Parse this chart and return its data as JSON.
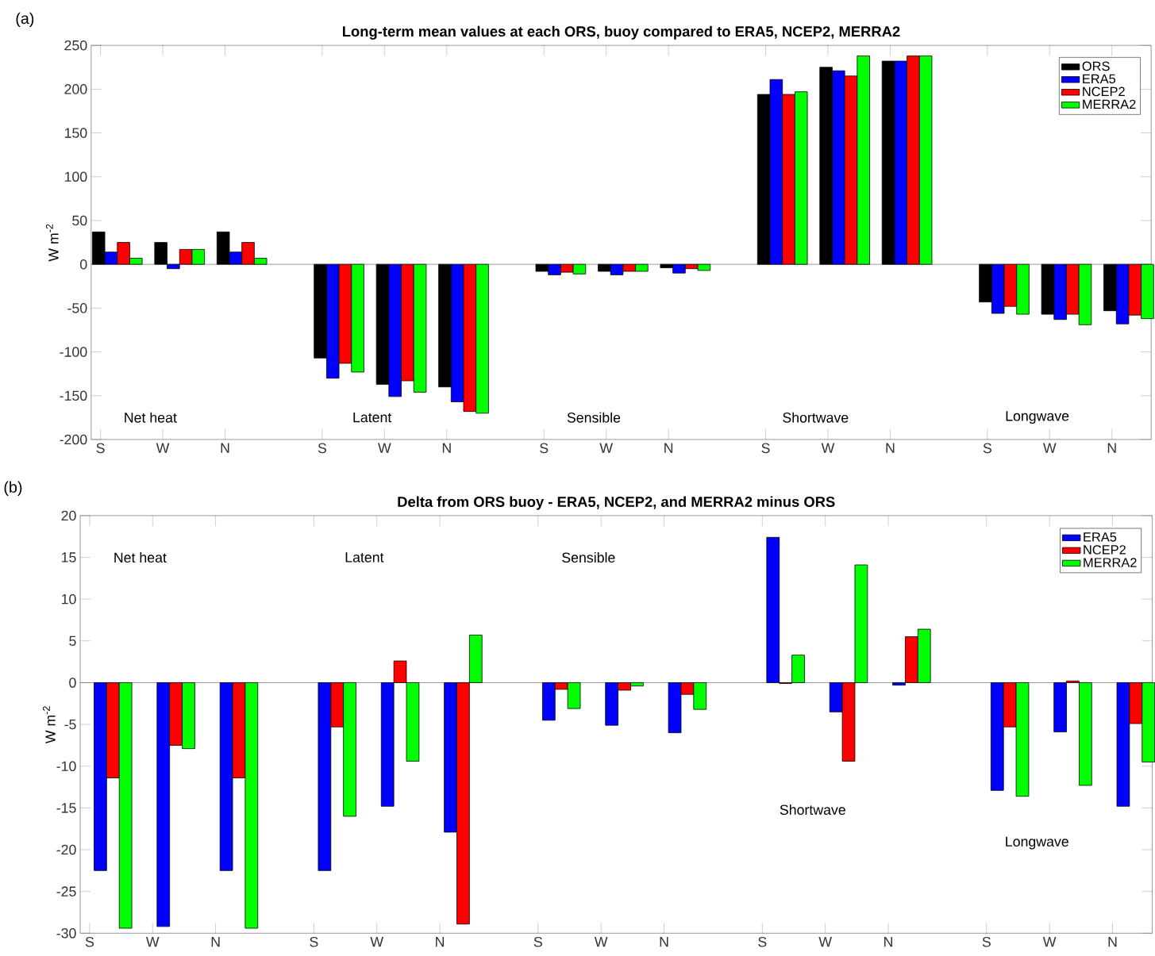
{
  "chart_data": [
    {
      "type": "bar",
      "title": "Long-term mean values at each ORS, buoy compared to ERA5, NCEP2, MERRA2",
      "ylabel": "W m$^{-2}$",
      "categories": [
        "S",
        "W",
        "N",
        "S",
        "W",
        "N",
        "S",
        "W",
        "N",
        "S",
        "W",
        "N",
        "S",
        "W",
        "N"
      ],
      "series": [
        {
          "name": "ORS",
          "color": "#000000",
          "values": [
            37,
            25,
            37,
            -107,
            -137,
            -140,
            -8,
            -8,
            -4,
            194,
            225,
            232,
            -43,
            -57,
            -53
          ]
        },
        {
          "name": "ERA5",
          "color": "#0000ff",
          "values": [
            14,
            -5,
            14,
            -130,
            -151,
            -157,
            -12,
            -12,
            -10,
            211,
            221,
            232,
            -56,
            -63,
            -68
          ]
        },
        {
          "name": "NCEP2",
          "color": "#ff0000",
          "values": [
            25,
            17,
            25,
            -113,
            -133,
            -168,
            -9,
            -8,
            -5,
            194,
            215,
            238,
            -48,
            -57,
            -58
          ]
        },
        {
          "name": "MERRA2",
          "color": "#00ff00",
          "values": [
            7,
            17,
            7,
            -123,
            -146,
            -170,
            -11,
            -8,
            -7,
            197,
            238,
            238,
            -57,
            -69,
            -62
          ]
        }
      ],
      "ylim": [
        -200,
        250
      ],
      "yticks": [
        -200,
        -150,
        -100,
        -50,
        0,
        50,
        100,
        150,
        200,
        250
      ],
      "legend": "top right",
      "annotations": [
        "(a)",
        "Net heat",
        "Latent",
        "Sensible",
        "Shortwave",
        "Longwave"
      ]
    },
    {
      "type": "bar",
      "title": "Delta from ORS buoy -  ERA5, NCEP2, and MERRA2 minus ORS",
      "ylabel": "W m$^{-2}$",
      "categories": [
        "S",
        "W",
        "N",
        "S",
        "W",
        "N",
        "S",
        "W",
        "N",
        "S",
        "W",
        "N",
        "S",
        "W",
        "N"
      ],
      "series": [
        {
          "name": "ERA5",
          "color": "#0000ff",
          "values": [
            -22.5,
            -29.2,
            -22.5,
            -22.5,
            -14.8,
            -17.9,
            -4.5,
            -5.1,
            -6.0,
            17.4,
            -3.5,
            -0.3,
            -12.9,
            -5.9,
            -14.8
          ]
        },
        {
          "name": "NCEP2",
          "color": "#ff0000",
          "values": [
            -11.4,
            -7.5,
            -11.4,
            -5.3,
            2.6,
            -28.9,
            -0.8,
            -0.9,
            -1.4,
            -0.1,
            -9.4,
            5.5,
            -5.3,
            0.2,
            -4.9
          ]
        },
        {
          "name": "MERRA2",
          "color": "#00ff00",
          "values": [
            -29.4,
            -7.9,
            -29.4,
            -16.0,
            -9.4,
            5.7,
            -3.1,
            -0.4,
            -3.2,
            3.3,
            14.1,
            6.4,
            -13.6,
            -12.3,
            -9.5
          ]
        }
      ],
      "ylim": [
        -30,
        20
      ],
      "yticks": [
        -30,
        -25,
        -20,
        -15,
        -10,
        -5,
        0,
        5,
        10,
        15,
        20
      ],
      "legend": "top right",
      "annotations": [
        "(b)",
        "Net heat",
        "Latent",
        "Sensible",
        "Shortwave",
        "Longwave"
      ]
    }
  ]
}
